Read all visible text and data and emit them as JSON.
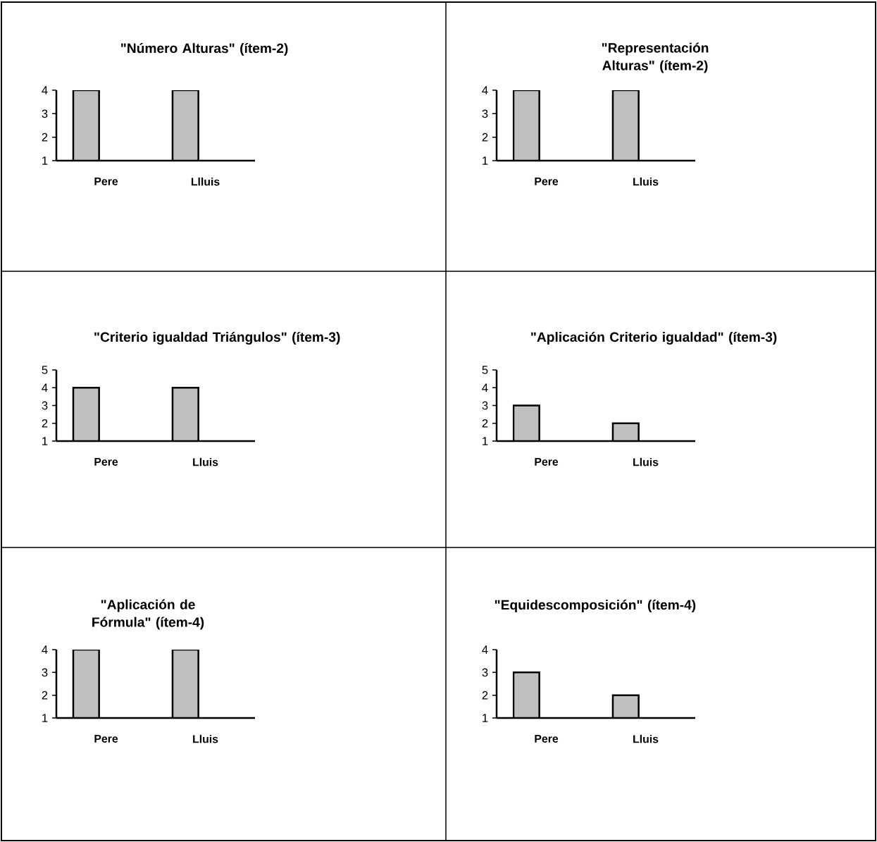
{
  "chart_data": [
    {
      "type": "bar",
      "title": "\"Número Alturas\" (ítem-2)",
      "categories": [
        "Pere",
        "Llluis"
      ],
      "values": [
        4,
        4
      ],
      "color": "#c0c0c0",
      "ylim": [
        1,
        4
      ],
      "yticks": [
        1,
        2,
        3,
        4
      ]
    },
    {
      "type": "bar",
      "title": "\"Representación Alturas\" (ítem-2)",
      "categories": [
        "Pere",
        "Lluis"
      ],
      "values": [
        4,
        4
      ],
      "color": "#c0c0c0",
      "ylim": [
        1,
        4
      ],
      "yticks": [
        1,
        2,
        3,
        4
      ]
    },
    {
      "type": "bar",
      "title": "\"Criterio igualdad Triángulos\" (ítem-3)",
      "categories": [
        "Pere",
        "Lluis"
      ],
      "values": [
        4,
        4
      ],
      "color": "#c0c0c0",
      "ylim": [
        1,
        5
      ],
      "yticks": [
        1,
        2,
        3,
        4,
        5
      ]
    },
    {
      "type": "bar",
      "title": "\"Aplicación Criterio igualdad\" (ítem-3)",
      "categories": [
        "Pere",
        "Lluis"
      ],
      "values": [
        3,
        2
      ],
      "color": "#c0c0c0",
      "ylim": [
        1,
        5
      ],
      "yticks": [
        1,
        2,
        3,
        4,
        5
      ]
    },
    {
      "type": "bar",
      "title": "\"Aplicación de Fórmula\" (ítem-4)",
      "categories": [
        "Pere",
        "Lluis"
      ],
      "values": [
        4,
        4
      ],
      "color": "#c0c0c0",
      "ylim": [
        1,
        4
      ],
      "yticks": [
        1,
        2,
        3,
        4
      ]
    },
    {
      "type": "bar",
      "title": "\"Equidescomposición\" (ítem-4)",
      "categories": [
        "Pere",
        "Lluis"
      ],
      "values": [
        3,
        2
      ],
      "color": "#c0c0c0",
      "ylim": [
        1,
        4
      ],
      "yticks": [
        1,
        2,
        3,
        4
      ]
    }
  ]
}
